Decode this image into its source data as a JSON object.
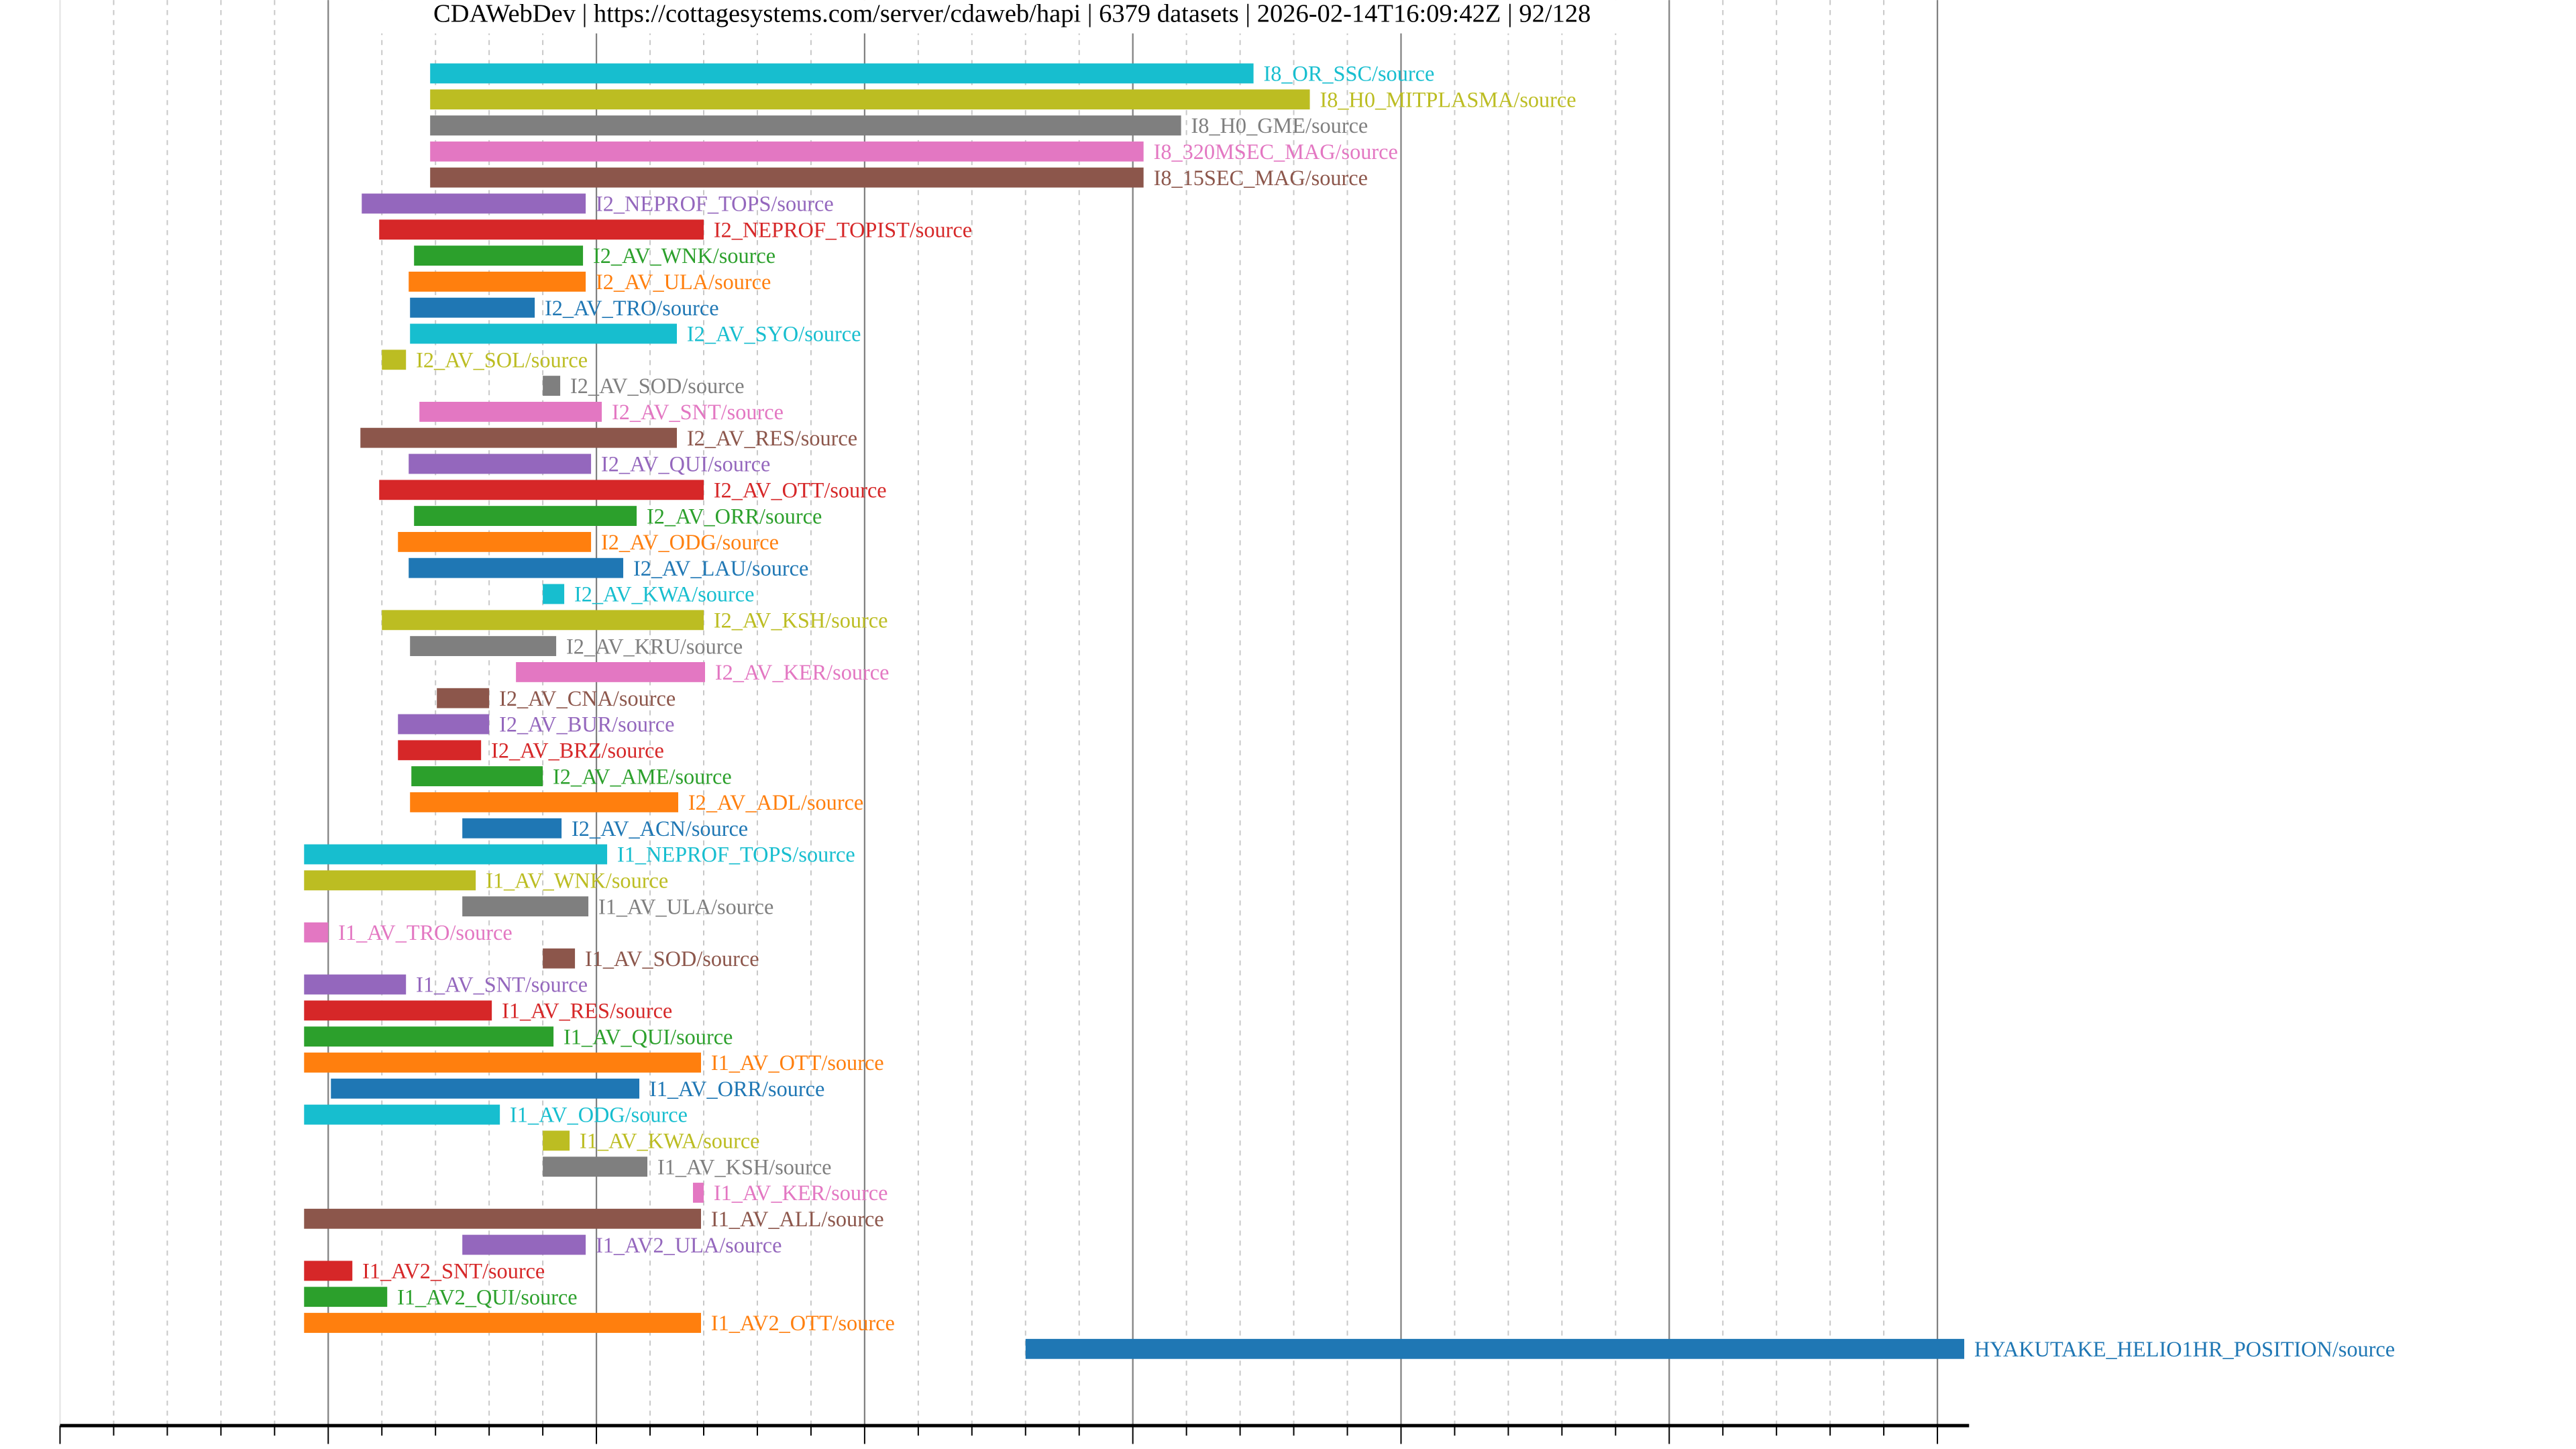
{
  "chart_data": {
    "type": "bar",
    "orientation": "horizontal-timeline",
    "title": "CDAWebDev | https://cottagesystems.com/server/cdaweb/hapi | 6379 datasets | 2026-02-14T16:09:42Z | 92/128",
    "xlabel": "",
    "ylabel": "",
    "xlim": [
      1960,
      2031.2
    ],
    "xticks": [
      1960,
      1970,
      1980,
      1990,
      2000,
      2010,
      2020,
      2030
    ],
    "grid": true,
    "colors": [
      "#17becf",
      "#bcbd22",
      "#7f7f7f",
      "#e377c2",
      "#8c564b",
      "#9467bd",
      "#d62728",
      "#2ca02c",
      "#ff7f0e",
      "#1f77b4"
    ],
    "series": [
      {
        "name": "I8_OR_SSC/source",
        "start": 1973.8,
        "stop": 2004.5
      },
      {
        "name": "I8_H0_MITPLASMA/source",
        "start": 1973.8,
        "stop": 2006.6
      },
      {
        "name": "I8_H0_GME/source",
        "start": 1973.8,
        "stop": 2001.8
      },
      {
        "name": "I8_320MSEC_MAG/source",
        "start": 1973.8,
        "stop": 2000.4
      },
      {
        "name": "I8_15SEC_MAG/source",
        "start": 1973.8,
        "stop": 2000.4
      },
      {
        "name": "I2_NEPROF_TOPS/source",
        "start": 1971.25,
        "stop": 1979.6
      },
      {
        "name": "I2_NEPROF_TOPIST/source",
        "start": 1971.9,
        "stop": 1984.0
      },
      {
        "name": "I2_AV_WNK/source",
        "start": 1973.2,
        "stop": 1979.5
      },
      {
        "name": "I2_AV_ULA/source",
        "start": 1973.0,
        "stop": 1979.6
      },
      {
        "name": "I2_AV_TRO/source",
        "start": 1973.05,
        "stop": 1977.7
      },
      {
        "name": "I2_AV_SYO/source",
        "start": 1973.05,
        "stop": 1983.0
      },
      {
        "name": "I2_AV_SOL/source",
        "start": 1972.0,
        "stop": 1972.9
      },
      {
        "name": "I2_AV_SOD/source",
        "start": 1978.0,
        "stop": 1978.65
      },
      {
        "name": "I2_AV_SNT/source",
        "start": 1973.4,
        "stop": 1980.2
      },
      {
        "name": "I2_AV_RES/source",
        "start": 1971.2,
        "stop": 1983.0
      },
      {
        "name": "I2_AV_QUI/source",
        "start": 1973.0,
        "stop": 1979.8
      },
      {
        "name": "I2_AV_OTT/source",
        "start": 1971.9,
        "stop": 1984.0
      },
      {
        "name": "I2_AV_ORR/source",
        "start": 1973.2,
        "stop": 1981.5
      },
      {
        "name": "I2_AV_ODG/source",
        "start": 1972.6,
        "stop": 1979.8
      },
      {
        "name": "I2_AV_LAU/source",
        "start": 1973.0,
        "stop": 1981.0
      },
      {
        "name": "I2_AV_KWA/source",
        "start": 1978.0,
        "stop": 1978.8
      },
      {
        "name": "I2_AV_KSH/source",
        "start": 1972.0,
        "stop": 1984.0
      },
      {
        "name": "I2_AV_KRU/source",
        "start": 1973.05,
        "stop": 1978.5
      },
      {
        "name": "I2_AV_KER/source",
        "start": 1977.0,
        "stop": 1984.05
      },
      {
        "name": "I2_AV_CNA/source",
        "start": 1974.05,
        "stop": 1976.0
      },
      {
        "name": "I2_AV_BUR/source",
        "start": 1972.6,
        "stop": 1976.0
      },
      {
        "name": "I2_AV_BRZ/source",
        "start": 1972.6,
        "stop": 1975.7
      },
      {
        "name": "I2_AV_AME/source",
        "start": 1973.1,
        "stop": 1978.0
      },
      {
        "name": "I2_AV_ADL/source",
        "start": 1973.05,
        "stop": 1983.05
      },
      {
        "name": "I2_AV_ACN/source",
        "start": 1975.0,
        "stop": 1978.7
      },
      {
        "name": "I1_NEPROF_TOPS/source",
        "start": 1969.1,
        "stop": 1980.4
      },
      {
        "name": "I1_AV_WNK/source",
        "start": 1969.1,
        "stop": 1975.5
      },
      {
        "name": "I1_AV_ULA/source",
        "start": 1975.0,
        "stop": 1979.7
      },
      {
        "name": "I1_AV_TRO/source",
        "start": 1969.1,
        "stop": 1970.0
      },
      {
        "name": "I1_AV_SOD/source",
        "start": 1978.0,
        "stop": 1979.2
      },
      {
        "name": "I1_AV_SNT/source",
        "start": 1969.1,
        "stop": 1972.9
      },
      {
        "name": "I1_AV_RES/source",
        "start": 1969.1,
        "stop": 1976.1
      },
      {
        "name": "I1_AV_QUI/source",
        "start": 1969.1,
        "stop": 1978.4
      },
      {
        "name": "I1_AV_OTT/source",
        "start": 1969.1,
        "stop": 1983.9
      },
      {
        "name": "I1_AV_ORR/source",
        "start": 1970.1,
        "stop": 1981.6
      },
      {
        "name": "I1_AV_ODG/source",
        "start": 1969.1,
        "stop": 1976.4
      },
      {
        "name": "I1_AV_KWA/source",
        "start": 1978.0,
        "stop": 1979.0
      },
      {
        "name": "I1_AV_KSH/source",
        "start": 1978.0,
        "stop": 1981.9
      },
      {
        "name": "I1_AV_KER/source",
        "start": 1983.6,
        "stop": 1984.0
      },
      {
        "name": "I1_AV_ALL/source",
        "start": 1969.1,
        "stop": 1983.9
      },
      {
        "name": "I1_AV2_ULA/source",
        "start": 1975.0,
        "stop": 1979.6
      },
      {
        "name": "I1_AV2_SNT/source",
        "start": 1969.1,
        "stop": 1970.9
      },
      {
        "name": "I1_AV2_QUI/source",
        "start": 1969.1,
        "stop": 1972.2
      },
      {
        "name": "I1_AV2_OTT/source",
        "start": 1969.1,
        "stop": 1983.9
      },
      {
        "name": "HYAKUTAKE_HELIO1HR_POSITION/source",
        "start": 1996.0,
        "stop": 2031.0
      }
    ]
  }
}
